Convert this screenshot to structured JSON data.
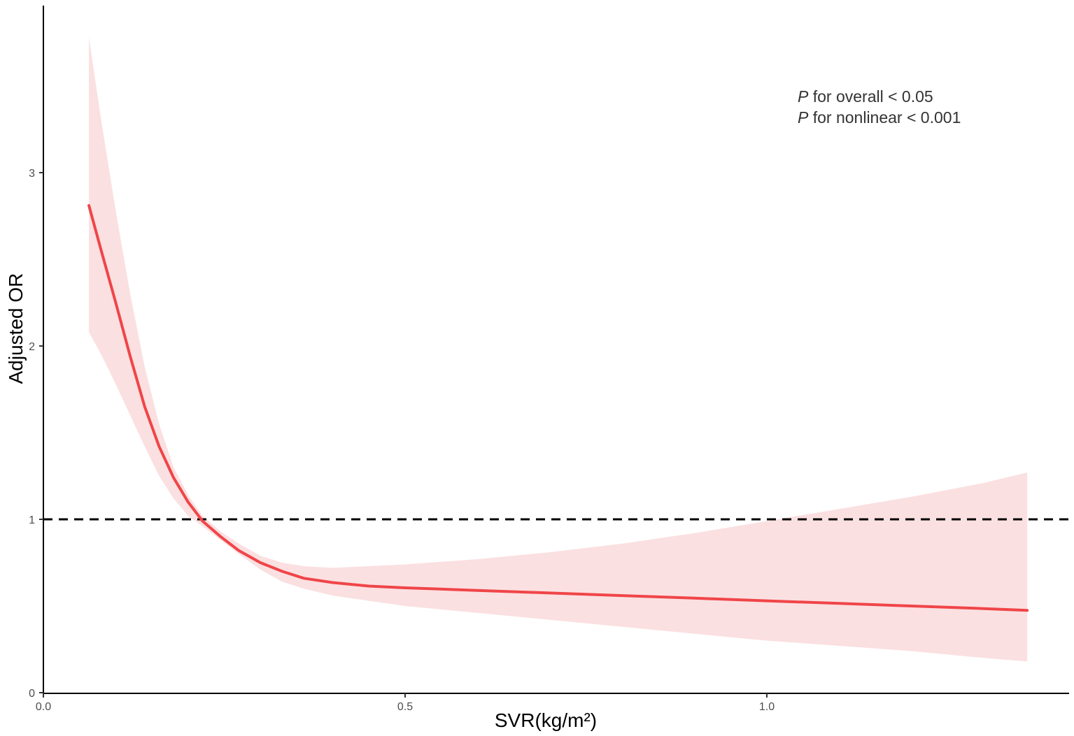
{
  "chart_data": {
    "type": "line",
    "xlabel": "SVR(kg/m²)",
    "ylabel": "Adjusted OR",
    "xlim": [
      0.0,
      1.42
    ],
    "ylim": [
      0.0,
      3.98
    ],
    "x_ticks": [
      0.0,
      0.5,
      1.0
    ],
    "x_tick_labels": [
      "0.0",
      "0.5",
      "1.0"
    ],
    "y_ticks": [
      0,
      1,
      2,
      3
    ],
    "y_tick_labels": [
      "0",
      "1",
      "2",
      "3"
    ],
    "grid": false,
    "reference_line": {
      "y": 1,
      "style": "dashed",
      "color": "#000000"
    },
    "series": [
      {
        "x": [
          0.063,
          0.08,
          0.1,
          0.12,
          0.14,
          0.16,
          0.18,
          0.2,
          0.22,
          0.245,
          0.27,
          0.3,
          0.33,
          0.36,
          0.4,
          0.45,
          0.5,
          0.6,
          0.7,
          0.8,
          0.9,
          1.0,
          1.1,
          1.2,
          1.3,
          1.36
        ],
        "y": [
          2.81,
          2.55,
          2.25,
          1.94,
          1.65,
          1.42,
          1.24,
          1.1,
          0.99,
          0.9,
          0.82,
          0.75,
          0.7,
          0.66,
          0.635,
          0.615,
          0.605,
          0.59,
          0.575,
          0.56,
          0.545,
          0.53,
          0.515,
          0.5,
          0.485,
          0.475
        ],
        "lower": [
          2.08,
          1.95,
          1.78,
          1.6,
          1.42,
          1.25,
          1.12,
          1.02,
          0.96,
          0.88,
          0.8,
          0.71,
          0.64,
          0.6,
          0.56,
          0.53,
          0.5,
          0.46,
          0.42,
          0.38,
          0.34,
          0.3,
          0.27,
          0.24,
          0.2,
          0.18
        ],
        "upper": [
          3.78,
          3.3,
          2.78,
          2.3,
          1.88,
          1.55,
          1.3,
          1.14,
          1.02,
          0.93,
          0.86,
          0.79,
          0.75,
          0.73,
          0.72,
          0.73,
          0.74,
          0.77,
          0.81,
          0.86,
          0.92,
          0.99,
          1.06,
          1.13,
          1.21,
          1.27
        ],
        "color": "#f04548",
        "band_color": "#fbe0e1"
      }
    ],
    "annotations": [
      {
        "italic": "P",
        "text": " for overall < 0.05"
      },
      {
        "italic": "P",
        "text": " for nonlinear < 0.001"
      }
    ]
  }
}
